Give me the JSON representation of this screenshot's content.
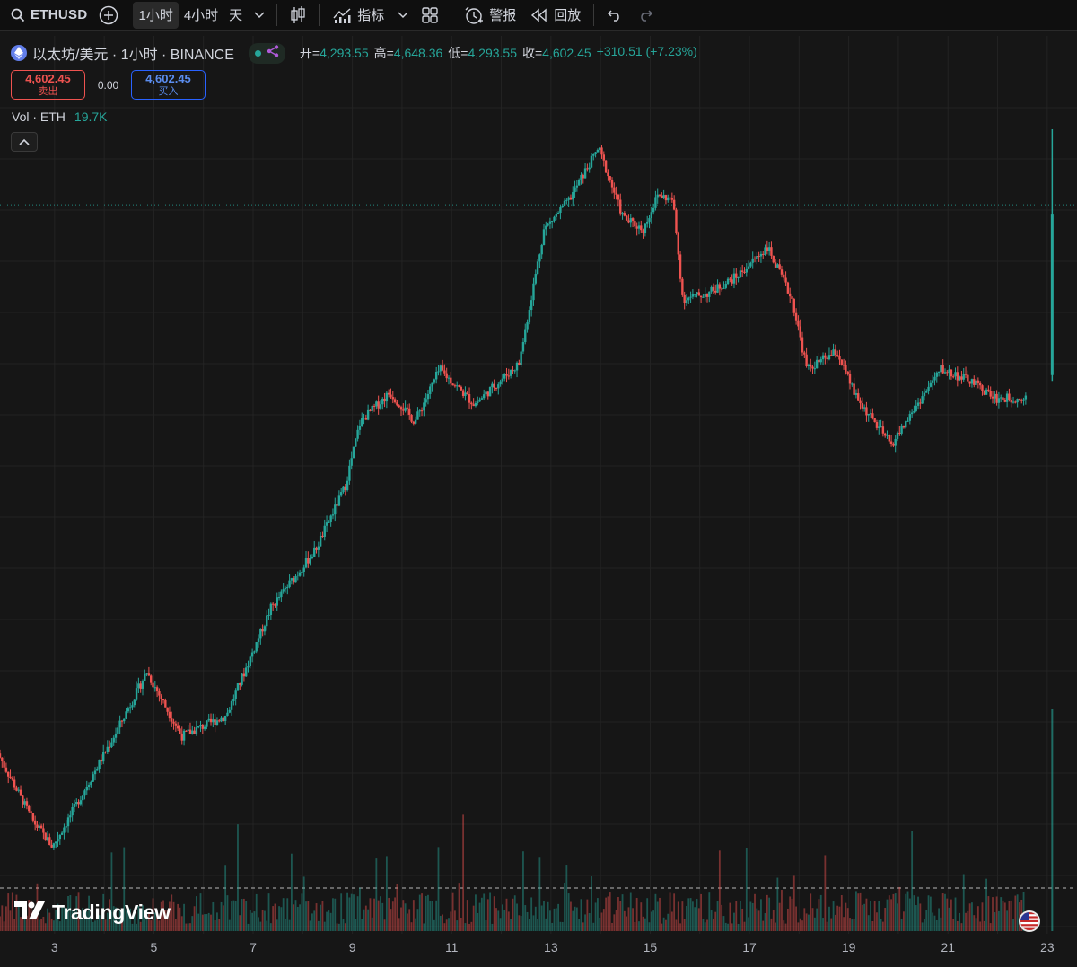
{
  "toolbar": {
    "symbol": "ETHUSD",
    "intervals": [
      "1小时",
      "4小时",
      "天"
    ],
    "indicators_label": "指标",
    "alert_label": "警报",
    "replay_label": "回放"
  },
  "legend": {
    "title": "以太坊/美元 · 1小时 · BINANCE",
    "open_label": "开=",
    "open": "4,293.55",
    "high_label": "高=",
    "high": "4,648.36",
    "low_label": "低=",
    "low": "4,293.55",
    "close_label": "收=",
    "close": "4,602.45",
    "change": "+310.51 (+7.23%)"
  },
  "trade": {
    "sell_price": "4,602.45",
    "sell_label": "卖出",
    "spread": "0.00",
    "buy_price": "4,602.45",
    "buy_label": "买入"
  },
  "volume": {
    "label": "Vol · ETH",
    "value": "19.7K"
  },
  "branding": {
    "logo_text": "TradingView"
  },
  "colors": {
    "up": "#26a69a",
    "down": "#ef5350",
    "background": "#161616",
    "grid": "#232323"
  },
  "chart_data": {
    "type": "candlestick",
    "symbol": "ETHUSD",
    "interval": "1小时",
    "exchange": "BINANCE",
    "x_ticks": [
      "3",
      "5",
      "7",
      "9",
      "11",
      "13",
      "15",
      "17",
      "19",
      "21",
      "23"
    ],
    "x_range_days": [
      1.9,
      23.6
    ],
    "price_estimate_range": [
      3520,
      4800
    ],
    "last_price": 4602.45,
    "last_change_pct": 7.23,
    "volume_last": "19.7K",
    "trend_points": [
      {
        "day": 1.9,
        "close": 3660
      },
      {
        "day": 2.6,
        "close": 3545
      },
      {
        "day": 3.0,
        "close": 3500
      },
      {
        "day": 3.5,
        "close": 3575
      },
      {
        "day": 4.3,
        "close": 3700
      },
      {
        "day": 4.9,
        "close": 3800
      },
      {
        "day": 5.6,
        "close": 3690
      },
      {
        "day": 6.5,
        "close": 3725
      },
      {
        "day": 7.4,
        "close": 3910
      },
      {
        "day": 8.3,
        "close": 4010
      },
      {
        "day": 8.9,
        "close": 4120
      },
      {
        "day": 9.2,
        "close": 4230
      },
      {
        "day": 9.8,
        "close": 4280
      },
      {
        "day": 10.3,
        "close": 4230
      },
      {
        "day": 10.8,
        "close": 4320
      },
      {
        "day": 11.5,
        "close": 4260
      },
      {
        "day": 12.4,
        "close": 4330
      },
      {
        "day": 12.9,
        "close": 4560
      },
      {
        "day": 13.4,
        "close": 4610
      },
      {
        "day": 14.0,
        "close": 4700
      },
      {
        "day": 14.5,
        "close": 4580
      },
      {
        "day": 14.9,
        "close": 4560
      },
      {
        "day": 15.2,
        "close": 4620
      },
      {
        "day": 15.5,
        "close": 4610
      },
      {
        "day": 15.7,
        "close": 4440
      },
      {
        "day": 16.2,
        "close": 4450
      },
      {
        "day": 16.8,
        "close": 4480
      },
      {
        "day": 17.4,
        "close": 4530
      },
      {
        "day": 17.9,
        "close": 4440
      },
      {
        "day": 18.2,
        "close": 4320
      },
      {
        "day": 18.8,
        "close": 4350
      },
      {
        "day": 19.2,
        "close": 4270
      },
      {
        "day": 19.9,
        "close": 4190
      },
      {
        "day": 20.5,
        "close": 4270
      },
      {
        "day": 20.9,
        "close": 4320
      },
      {
        "day": 21.5,
        "close": 4300
      },
      {
        "day": 22.0,
        "close": 4270
      },
      {
        "day": 22.6,
        "close": 4270
      },
      {
        "day": 23.1,
        "close": 4602
      }
    ]
  }
}
